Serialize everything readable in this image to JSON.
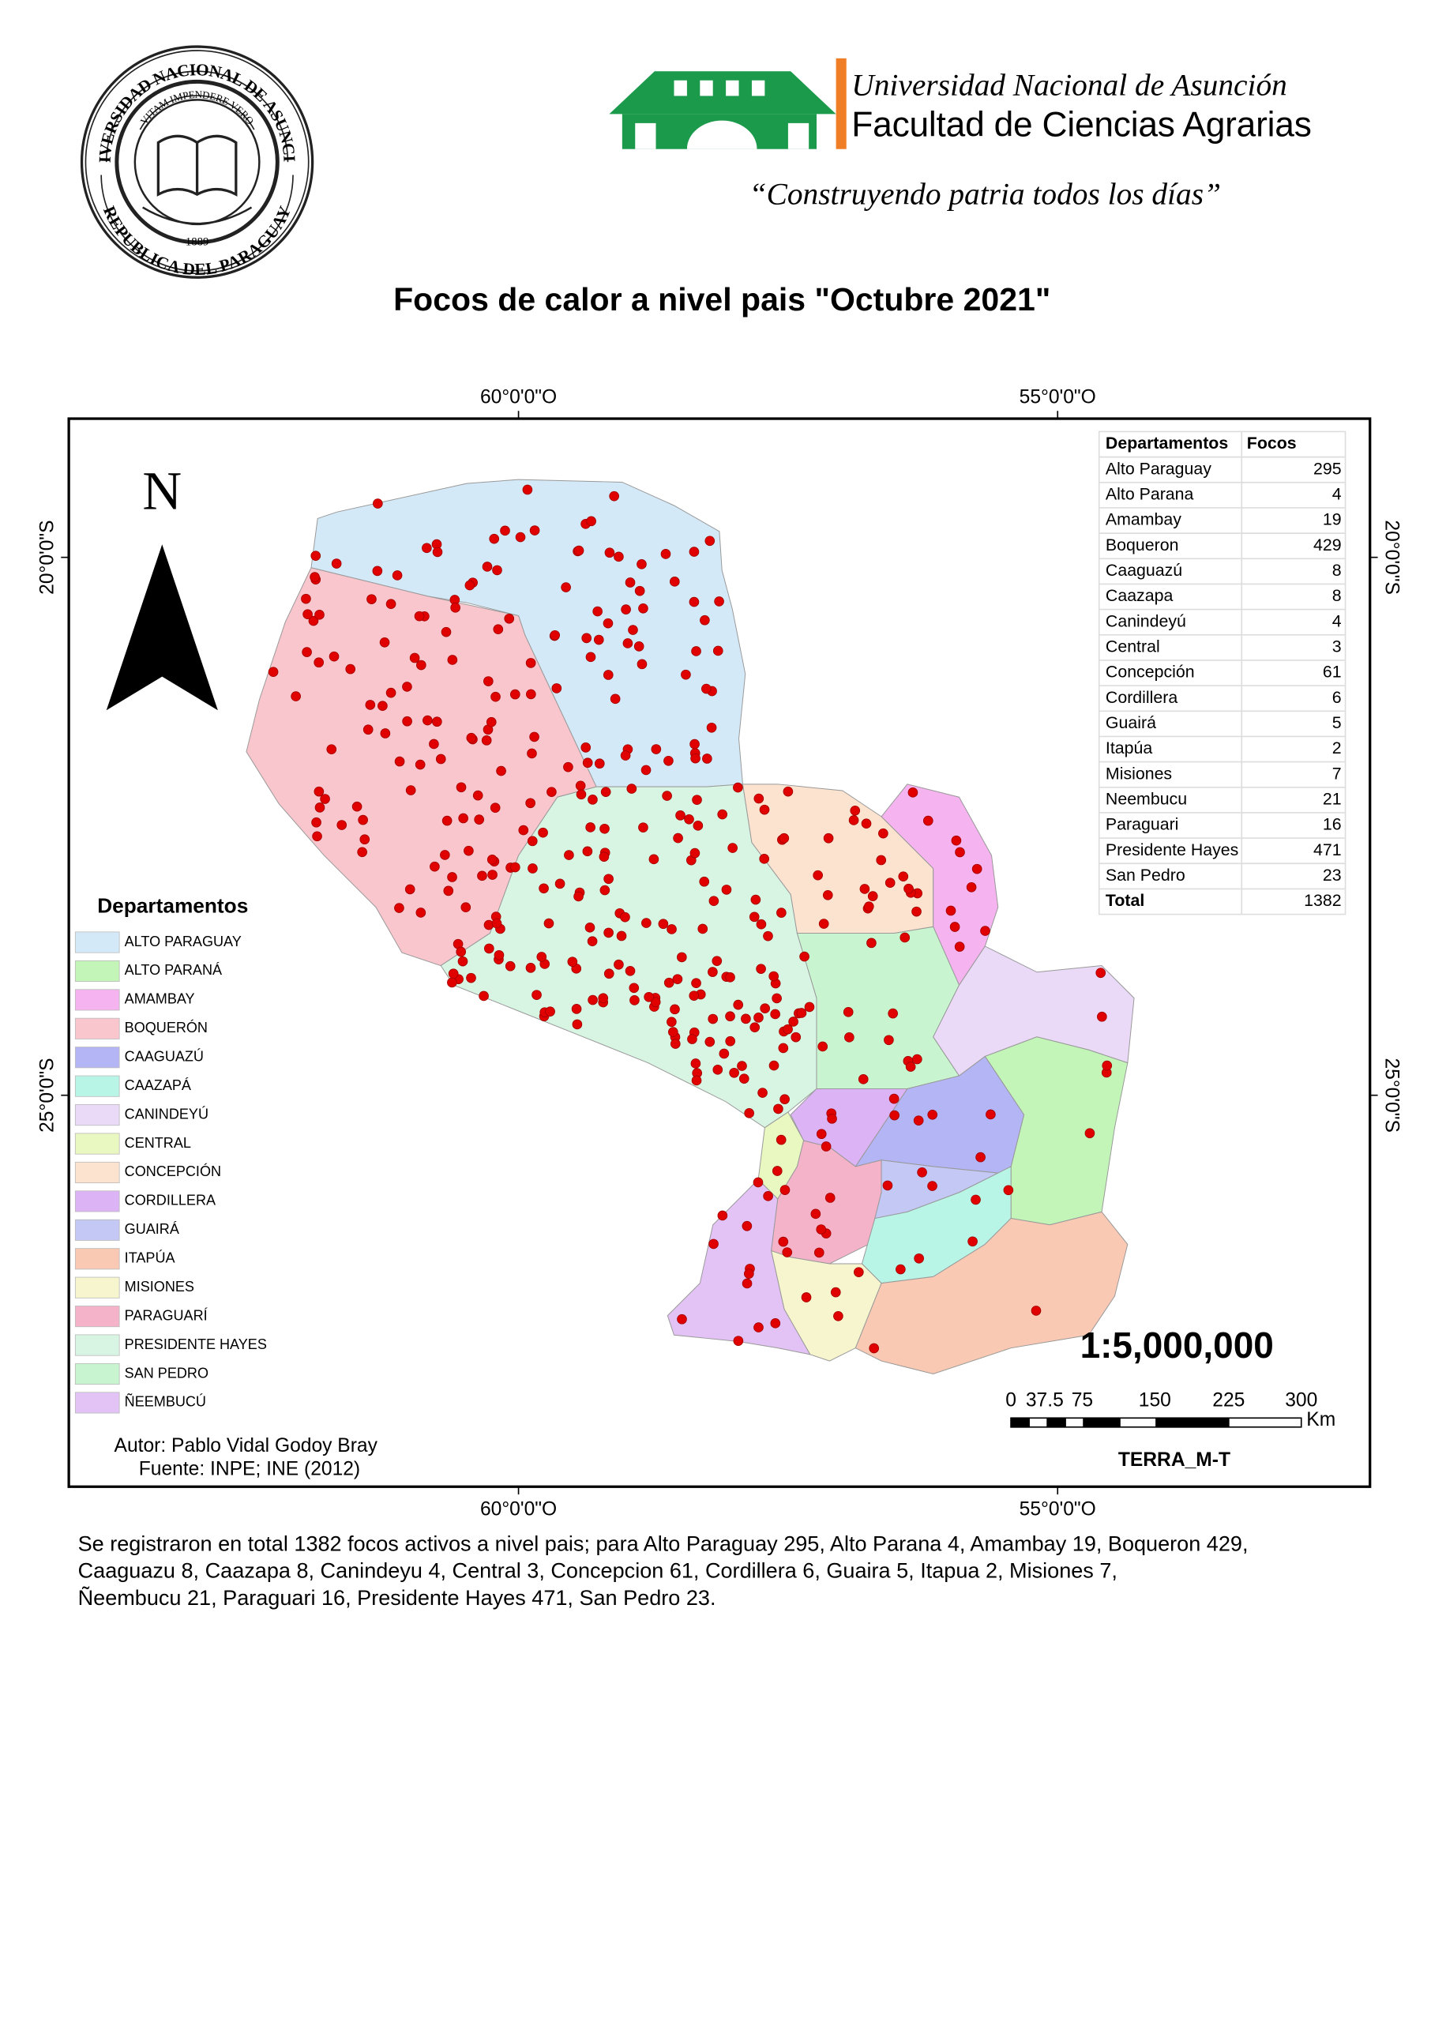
{
  "header": {
    "seal": {
      "ring_top": "UNIVERSIDAD NACIONAL DE ASUNCION",
      "ring_bottom": "REPUBLICA DEL PARAGUAY",
      "motto": "VITAM IMPENDERE VERO",
      "year": "1889"
    },
    "university": "Universidad Nacional de Asunción",
    "faculty": "Facultad de Ciencias Agrarias",
    "motto": "“Construyendo patria todos los días”"
  },
  "title": "Focos de calor a nivel pais \"Octubre 2021\"",
  "map": {
    "graticule": {
      "lon_left": "60°0'0\"O",
      "lon_right": "55°0'0\"O",
      "lat_top": "20°0'0\"S",
      "lat_bottom": "25°0'0\"S"
    },
    "north": "N",
    "table": {
      "header": [
        "Departamentos",
        "Focos"
      ],
      "rows": [
        [
          "Alto Paraguay",
          295
        ],
        [
          "Alto Parana",
          4
        ],
        [
          "Amambay",
          19
        ],
        [
          "Boqueron",
          429
        ],
        [
          "Caaguazú",
          8
        ],
        [
          "Caazapa",
          8
        ],
        [
          "Canindeyú",
          4
        ],
        [
          "Central",
          3
        ],
        [
          "Concepción",
          61
        ],
        [
          "Cordillera",
          6
        ],
        [
          "Guairá",
          5
        ],
        [
          "Itapúa",
          2
        ],
        [
          "Misiones",
          7
        ],
        [
          "Neembucu",
          21
        ],
        [
          "Paraguari",
          16
        ],
        [
          "Presidente Hayes",
          471
        ],
        [
          "San Pedro",
          23
        ]
      ],
      "total": [
        "Total",
        1382
      ]
    },
    "legend": {
      "title": "Departamentos",
      "items": [
        {
          "label": "ALTO PARAGUAY",
          "color": "#d4e9f7"
        },
        {
          "label": "ALTO PARANÁ",
          "color": "#c3f5b8"
        },
        {
          "label": "AMAMBAY",
          "color": "#f5b3ef"
        },
        {
          "label": "BOQUERÓN",
          "color": "#f9c6cd"
        },
        {
          "label": "CAAGUAZÚ",
          "color": "#b3b5f5"
        },
        {
          "label": "CAAZAPÁ",
          "color": "#b8f5e6"
        },
        {
          "label": "CANINDEYÚ",
          "color": "#ead9f7"
        },
        {
          "label": "CENTRAL",
          "color": "#e9f7c0"
        },
        {
          "label": "CONCEPCIÓN",
          "color": "#fce3cf"
        },
        {
          "label": "CORDILLERA",
          "color": "#dcb3f5"
        },
        {
          "label": "GUAIRÁ",
          "color": "#c3c8f5"
        },
        {
          "label": "ITAPÚA",
          "color": "#f9c9b3"
        },
        {
          "label": "MISIONES",
          "color": "#f7f5cd"
        },
        {
          "label": "PARAGUARÍ",
          "color": "#f5b3c9"
        },
        {
          "label": "PRESIDENTE HAYES",
          "color": "#d8f5e3"
        },
        {
          "label": "SAN PEDRO",
          "color": "#c8f5cf"
        },
        {
          "label": "ÑEEMBUCÚ",
          "color": "#e3c3f5"
        }
      ]
    },
    "author": "Autor: Pablo Vidal Godoy Bray",
    "source": "Fuente: INPE; INE (2012)",
    "scale": "1:5,000,000",
    "scale_bar": {
      "labels": [
        "0",
        "37.5",
        "75",
        "150",
        "225",
        "300"
      ],
      "unit": "Km"
    },
    "credit": "TERRA_M-T"
  },
  "description": {
    "lines": [
      "Se registraron en total 1382  focos activos a nivel pais; para Alto Paraguay 295, Alto Parana 4, Amambay 19, Boqueron 429,",
      "Caaguazu 8, Caazapa 8, Canindeyu 4, Central 3, Concepcion 61, Cordillera 6, Guaira 5, Itapua 2, Misiones 7,",
      "Ñeembucu 21, Paraguari 16, Presidente Hayes 471, San Pedro 23."
    ]
  }
}
